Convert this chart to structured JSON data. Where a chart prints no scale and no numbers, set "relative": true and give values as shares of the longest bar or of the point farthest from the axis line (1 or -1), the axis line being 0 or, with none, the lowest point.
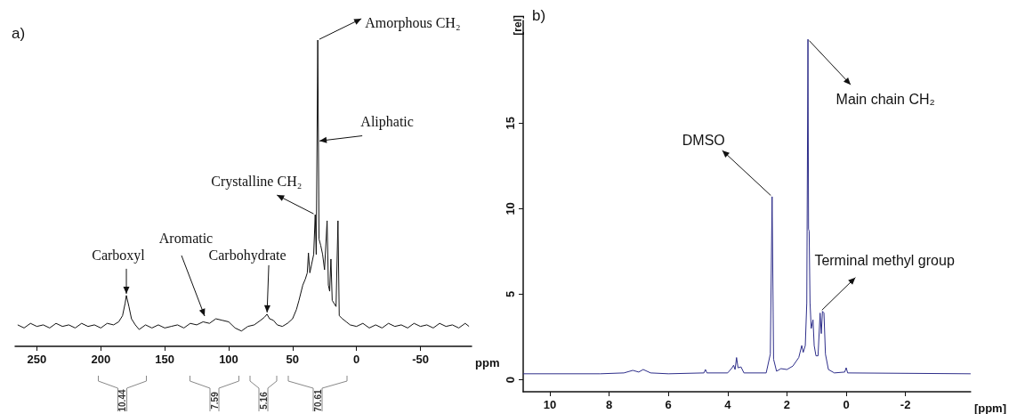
{
  "chart_data": [
    {
      "type": "line",
      "title": "a)",
      "relative": true,
      "xlabel": "ppm",
      "xlim": [
        267,
        -90
      ],
      "xticks": [
        250,
        200,
        150,
        100,
        50,
        0,
        -50
      ],
      "grid": false,
      "marker": "none",
      "tick_labels": "x",
      "series": [
        {
          "color": "#111111",
          "x": [
            265,
            260,
            255,
            250,
            245,
            240,
            235,
            230,
            225,
            220,
            215,
            210,
            205,
            200,
            195,
            190,
            186,
            183,
            181,
            180,
            178,
            176,
            173,
            170,
            165,
            160,
            155,
            150,
            145,
            140,
            135,
            130,
            125,
            120,
            115,
            110,
            105,
            100,
            95,
            90,
            85,
            80,
            75,
            72,
            70,
            68,
            65,
            62,
            58,
            54,
            50,
            47,
            45,
            42,
            40,
            38.5,
            37.6,
            36.5,
            35,
            33.5,
            32.3,
            31.5,
            30.3,
            29.3,
            28,
            26.5,
            25,
            23,
            22,
            21,
            20,
            19,
            16,
            14.5,
            13.5,
            11,
            8,
            5,
            0,
            -5,
            -10,
            -15,
            -20,
            -25,
            -30,
            -35,
            -40,
            -45,
            -50,
            -55,
            -60,
            -65,
            -70,
            -75,
            -80,
            -85,
            -88
          ],
          "values": [
            0.07,
            0.06,
            0.075,
            0.065,
            0.07,
            0.06,
            0.075,
            0.065,
            0.07,
            0.06,
            0.075,
            0.065,
            0.07,
            0.06,
            0.075,
            0.07,
            0.08,
            0.1,
            0.14,
            0.166,
            0.13,
            0.09,
            0.07,
            0.055,
            0.07,
            0.06,
            0.07,
            0.06,
            0.065,
            0.07,
            0.06,
            0.075,
            0.07,
            0.08,
            0.075,
            0.09,
            0.085,
            0.08,
            0.06,
            0.05,
            0.065,
            0.07,
            0.085,
            0.095,
            0.105,
            0.09,
            0.085,
            0.07,
            0.065,
            0.075,
            0.09,
            0.12,
            0.15,
            0.2,
            0.22,
            0.24,
            0.305,
            0.24,
            0.27,
            0.3,
            0.43,
            0.3,
            1,
            0.35,
            0.33,
            0.3,
            0.25,
            0.41,
            0.2,
            0.18,
            0.285,
            0.15,
            0.13,
            0.41,
            0.1,
            0.09,
            0.08,
            0.07,
            0.065,
            0.075,
            0.06,
            0.07,
            0.06,
            0.075,
            0.065,
            0.07,
            0.06,
            0.075,
            0.065,
            0.07,
            0.06,
            0.075,
            0.065,
            0.07,
            0.06,
            0.075,
            0.065
          ]
        }
      ],
      "annotations": [
        {
          "text": "Amorphous CH₂",
          "x": 30.3,
          "y": 1
        },
        {
          "text": "Aliphatic",
          "x": 30.3,
          "y": 0.67
        },
        {
          "text": "Crystalline CH₂",
          "x": 32.3,
          "y": 0.43
        },
        {
          "text": "Carboxyl",
          "x": 180,
          "y": 0.166
        },
        "Aromatic",
        {
          "text": "Carbohydrate",
          "x": 70,
          "y": 0.105
        },
        "10.44",
        "7.59",
        "5.16",
        "70.61"
      ]
    },
    {
      "type": "line",
      "title": "b)",
      "xlabel": "[ppm]",
      "ylabel": "[rel]",
      "xlim": [
        10.9,
        -4.2
      ],
      "xticks": [
        10,
        8,
        6,
        4,
        2,
        0,
        -2
      ],
      "ylim": [
        -0.7,
        21
      ],
      "yticks": [
        0,
        5,
        10,
        15
      ],
      "grid": false,
      "marker": "none",
      "series": [
        {
          "color": "#2e2e8a",
          "x": [
            10.9,
            8.3,
            7.5,
            7.2,
            7.0,
            6.85,
            6.6,
            6.0,
            4.8,
            4.75,
            4.7,
            4.0,
            3.85,
            3.8,
            3.75,
            3.7,
            3.65,
            3.55,
            3.45,
            2.7,
            2.56,
            2.5,
            2.45,
            2.35,
            2.2,
            2.0,
            1.8,
            1.6,
            1.5,
            1.45,
            1.38,
            1.33,
            1.29,
            1.27,
            1.25,
            1.22,
            1.18,
            1.12,
            1.08,
            1.02,
            0.95,
            0.88,
            0.84,
            0.8,
            0.75,
            0.7,
            0.6,
            0.4,
            0.05,
            0.0,
            -0.05,
            -4.2
          ],
          "values": [
            0.35,
            0.35,
            0.4,
            0.55,
            0.45,
            0.6,
            0.4,
            0.35,
            0.4,
            0.6,
            0.4,
            0.4,
            0.7,
            0.85,
            0.6,
            1.3,
            0.7,
            0.75,
            0.4,
            0.4,
            1.5,
            10.7,
            1.2,
            0.5,
            0.65,
            0.6,
            0.8,
            1.3,
            2.0,
            1.6,
            2.0,
            4.5,
            19.9,
            8.8,
            8.7,
            4.5,
            3.0,
            3.5,
            2.0,
            1.4,
            1.4,
            3.9,
            2.7,
            4.0,
            3.9,
            1.5,
            0.6,
            0.4,
            0.45,
            0.7,
            0.4,
            0.35
          ]
        }
      ],
      "annotations": [
        {
          "text": "DMSO",
          "x": 2.5,
          "y": 10.7
        },
        {
          "text": "Main chain CH₂",
          "x": 1.29,
          "y": 19.9
        },
        {
          "text": "Terminal methyl group",
          "x": 0.86,
          "y": 4.0
        }
      ]
    }
  ]
}
